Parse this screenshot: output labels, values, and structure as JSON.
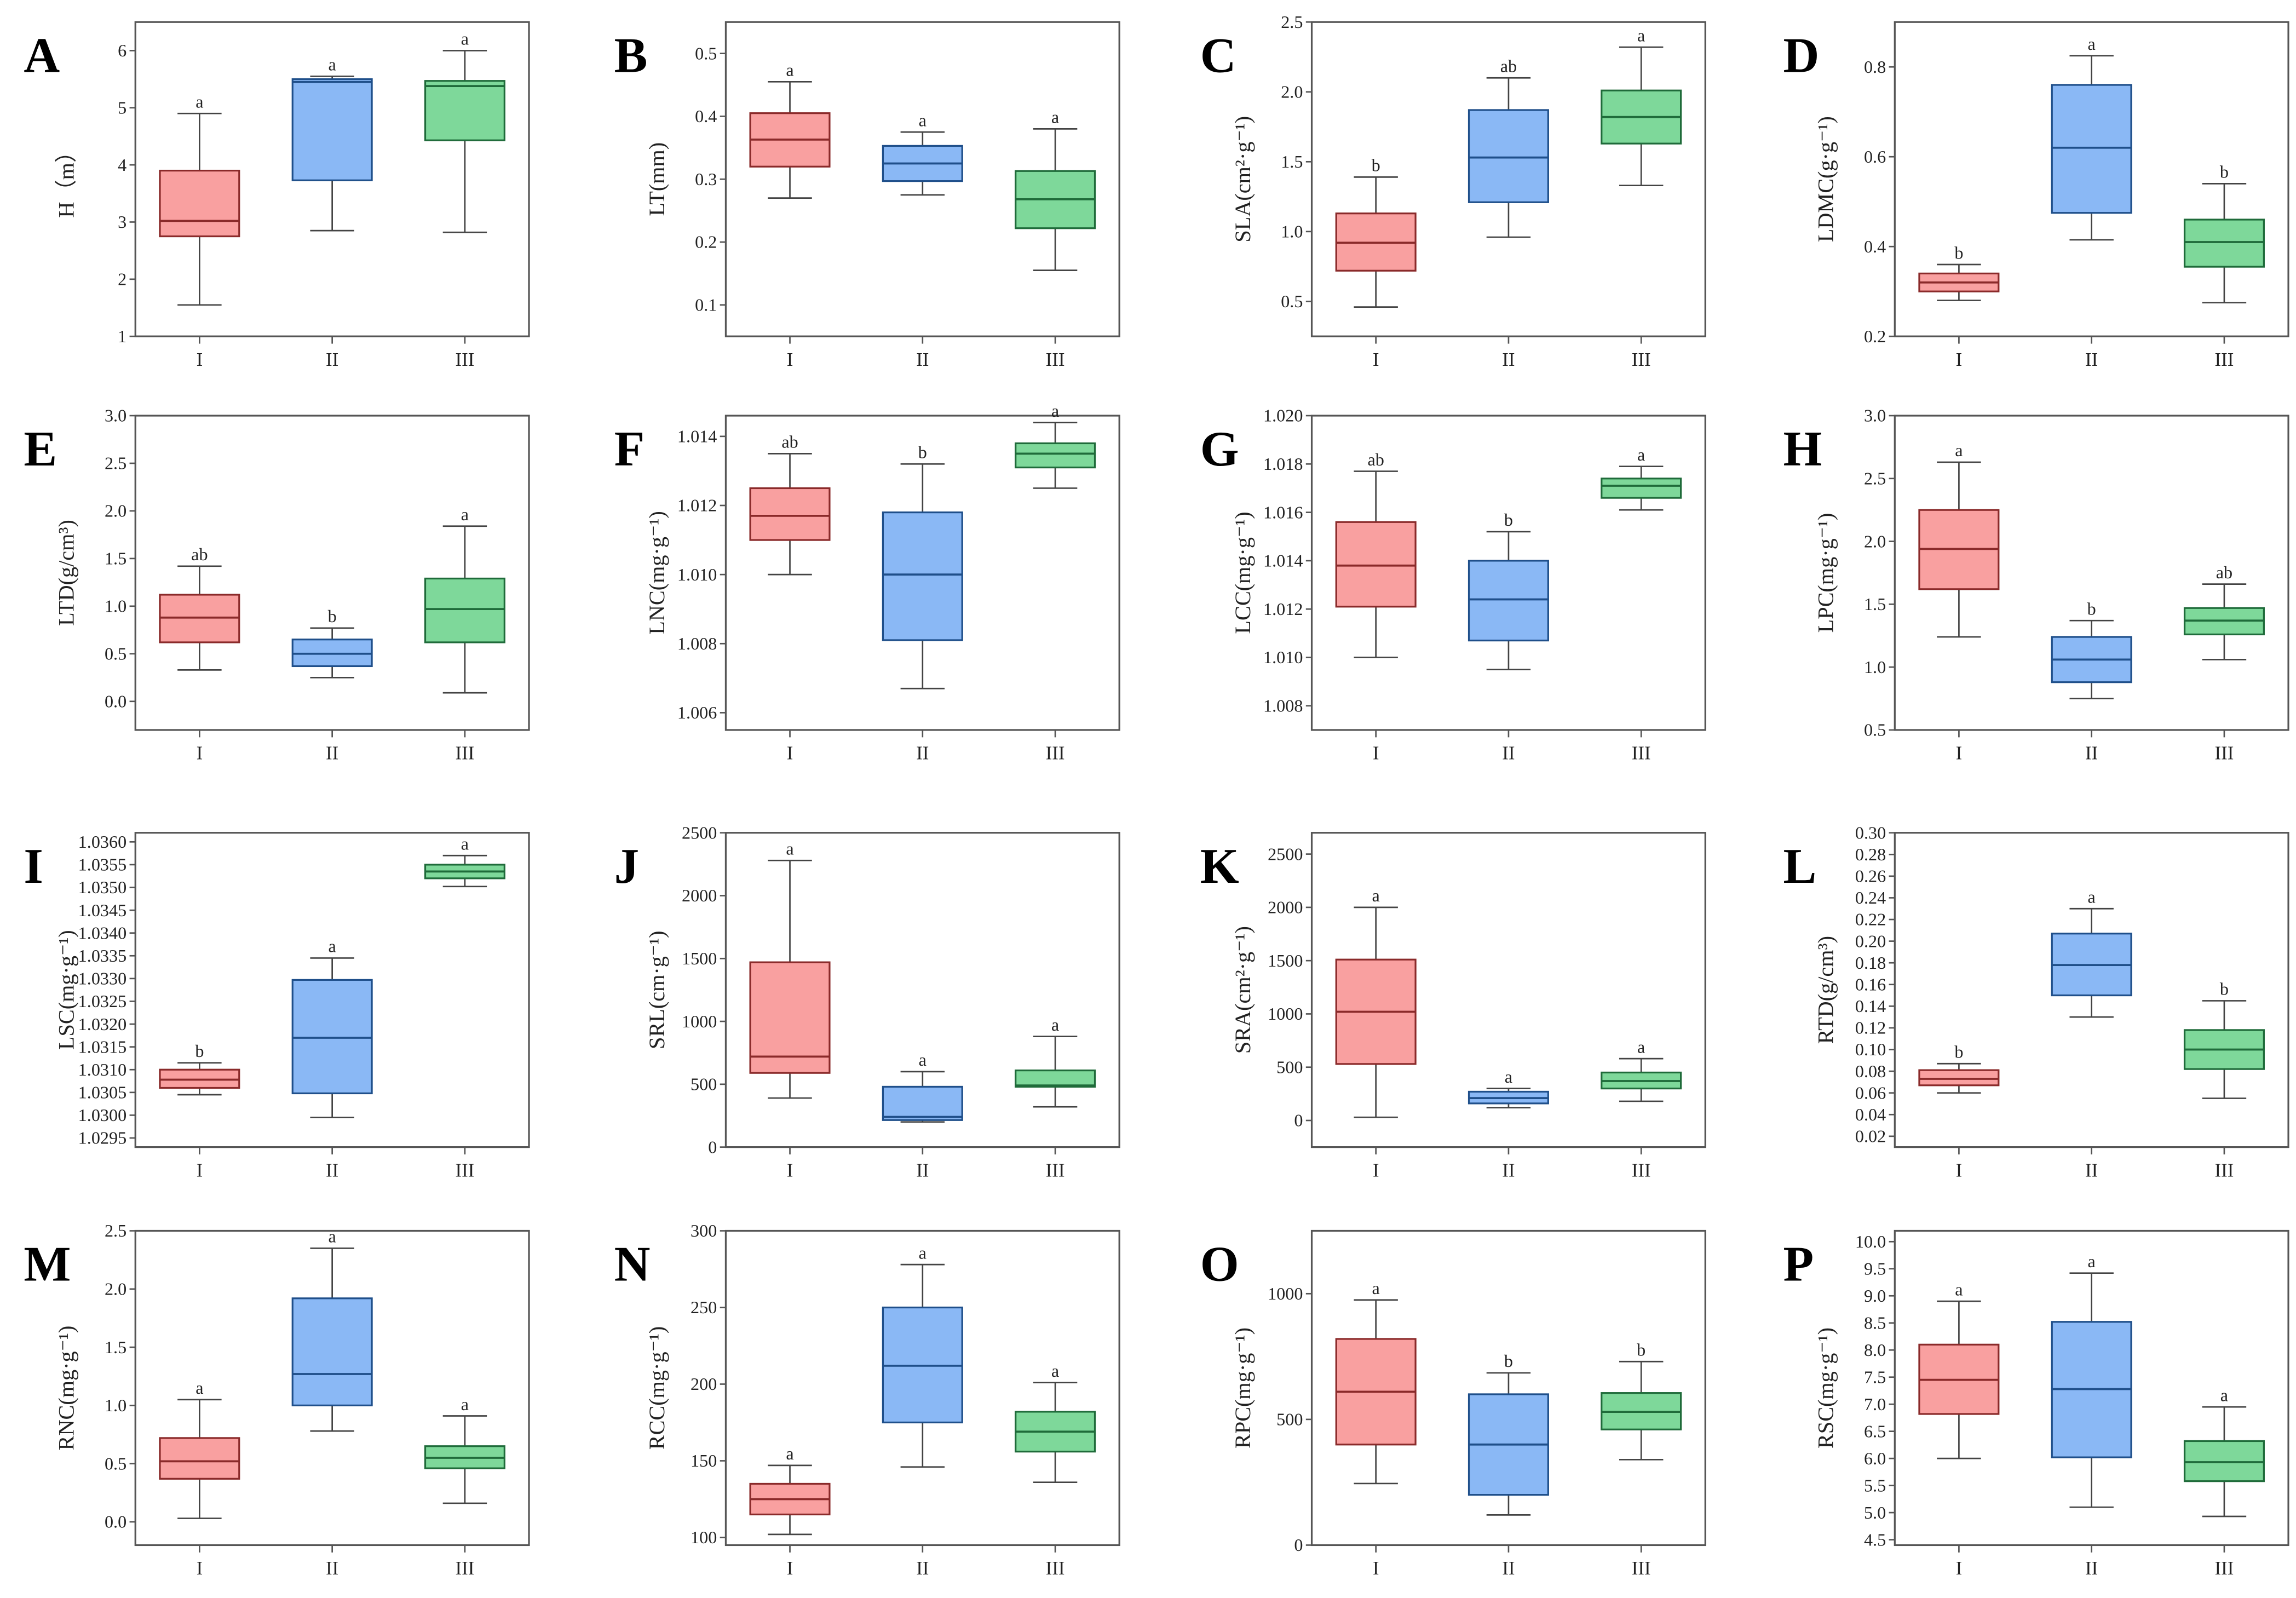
{
  "colors": {
    "I": "#f9a0a0",
    "II": "#8ab8f5",
    "III": "#7ed89a",
    "I_line": "#8a2a2a",
    "II_line": "#1f4f8a",
    "III_line": "#1f6b3a",
    "whisker": "#444444",
    "axis": "#555555"
  },
  "chart_data": [
    {
      "type": "box",
      "panel": "A",
      "ylabel": "H（m）",
      "yticks": [
        "1",
        "2",
        "3",
        "4",
        "5",
        "6"
      ],
      "ylim": [
        1,
        6.5
      ],
      "categories": [
        "I",
        "II",
        "III"
      ],
      "boxes": [
        {
          "min": 1.55,
          "q1": 2.75,
          "median": 3.02,
          "q3": 3.9,
          "max": 4.9,
          "sig": "a"
        },
        {
          "min": 2.85,
          "q1": 3.73,
          "median": 5.45,
          "q3": 5.5,
          "max": 5.55,
          "sig": "a"
        },
        {
          "min": 2.82,
          "q1": 4.43,
          "median": 5.38,
          "q3": 5.47,
          "max": 6.0,
          "sig": "a"
        }
      ]
    },
    {
      "type": "box",
      "panel": "B",
      "ylabel": "LT(mm)",
      "yticks": [
        "0.1",
        "0.2",
        "0.3",
        "0.4",
        "0.5"
      ],
      "ylim": [
        0.05,
        0.55
      ],
      "categories": [
        "I",
        "II",
        "III"
      ],
      "boxes": [
        {
          "min": 0.27,
          "q1": 0.32,
          "median": 0.363,
          "q3": 0.405,
          "max": 0.455,
          "sig": "a"
        },
        {
          "min": 0.275,
          "q1": 0.297,
          "median": 0.325,
          "q3": 0.353,
          "max": 0.375,
          "sig": "a"
        },
        {
          "min": 0.155,
          "q1": 0.222,
          "median": 0.268,
          "q3": 0.313,
          "max": 0.38,
          "sig": "a"
        }
      ]
    },
    {
      "type": "box",
      "panel": "C",
      "ylabel": "SLA(cm²·g⁻¹)",
      "yticks": [
        "0.5",
        "1.0",
        "1.5",
        "2.0",
        "2.5"
      ],
      "ylim": [
        0.25,
        2.5
      ],
      "categories": [
        "I",
        "II",
        "III"
      ],
      "boxes": [
        {
          "min": 0.46,
          "q1": 0.72,
          "median": 0.92,
          "q3": 1.13,
          "max": 1.39,
          "sig": "b"
        },
        {
          "min": 0.96,
          "q1": 1.21,
          "median": 1.53,
          "q3": 1.87,
          "max": 2.1,
          "sig": "ab"
        },
        {
          "min": 1.33,
          "q1": 1.63,
          "median": 1.82,
          "q3": 2.01,
          "max": 2.32,
          "sig": "a"
        }
      ]
    },
    {
      "type": "box",
      "panel": "D",
      "ylabel": "LDMC(g·g⁻¹)",
      "yticks": [
        "0.2",
        "0.4",
        "0.6",
        "0.8"
      ],
      "ylim": [
        0.2,
        0.9
      ],
      "categories": [
        "I",
        "II",
        "III"
      ],
      "boxes": [
        {
          "min": 0.28,
          "q1": 0.3,
          "median": 0.32,
          "q3": 0.34,
          "max": 0.36,
          "sig": "b"
        },
        {
          "min": 0.415,
          "q1": 0.475,
          "median": 0.62,
          "q3": 0.76,
          "max": 0.825,
          "sig": "a"
        },
        {
          "min": 0.275,
          "q1": 0.355,
          "median": 0.41,
          "q3": 0.46,
          "max": 0.54,
          "sig": "b"
        }
      ]
    },
    {
      "type": "box",
      "panel": "E",
      "ylabel": "LTD(g/cm³)",
      "yticks": [
        "0.0",
        "0.5",
        "1.0",
        "1.5",
        "2.0",
        "2.5",
        "3.0"
      ],
      "ylim": [
        -0.3,
        3.0
      ],
      "categories": [
        "I",
        "II",
        "III"
      ],
      "boxes": [
        {
          "min": 0.33,
          "q1": 0.62,
          "median": 0.88,
          "q3": 1.12,
          "max": 1.42,
          "sig": "ab"
        },
        {
          "min": 0.25,
          "q1": 0.37,
          "median": 0.5,
          "q3": 0.65,
          "max": 0.77,
          "sig": "b"
        },
        {
          "min": 0.09,
          "q1": 0.62,
          "median": 0.97,
          "q3": 1.29,
          "max": 1.84,
          "sig": "a"
        }
      ]
    },
    {
      "type": "box",
      "panel": "F",
      "ylabel": "LNC(mg·g⁻¹)",
      "yticks": [
        "1.006",
        "1.008",
        "1.010",
        "1.012",
        "1.014"
      ],
      "ylim": [
        1.0055,
        1.0146
      ],
      "categories": [
        "I",
        "II",
        "III"
      ],
      "boxes": [
        {
          "min": 1.01,
          "q1": 1.011,
          "median": 1.0117,
          "q3": 1.0125,
          "max": 1.0135,
          "sig": "ab"
        },
        {
          "min": 1.0067,
          "q1": 1.0081,
          "median": 1.01,
          "q3": 1.0118,
          "max": 1.0132,
          "sig": "b"
        },
        {
          "min": 1.0125,
          "q1": 1.0131,
          "median": 1.0135,
          "q3": 1.0138,
          "max": 1.0144,
          "sig": "a"
        }
      ]
    },
    {
      "type": "box",
      "panel": "G",
      "ylabel": "LCC(mg·g⁻¹)",
      "yticks": [
        "1.008",
        "1.010",
        "1.012",
        "1.014",
        "1.016",
        "1.018",
        "1.020"
      ],
      "ylim": [
        1.007,
        1.02
      ],
      "categories": [
        "I",
        "II",
        "III"
      ],
      "boxes": [
        {
          "min": 1.01,
          "q1": 1.0121,
          "median": 1.0138,
          "q3": 1.0156,
          "max": 1.0177,
          "sig": "ab"
        },
        {
          "min": 1.0095,
          "q1": 1.0107,
          "median": 1.0124,
          "q3": 1.014,
          "max": 1.0152,
          "sig": "b"
        },
        {
          "min": 1.0161,
          "q1": 1.0166,
          "median": 1.0171,
          "q3": 1.0174,
          "max": 1.0179,
          "sig": "a"
        }
      ]
    },
    {
      "type": "box",
      "panel": "H",
      "ylabel": "LPC(mg·g⁻¹)",
      "yticks": [
        "0.5",
        "1.0",
        "1.5",
        "2.0",
        "2.5",
        "3.0"
      ],
      "ylim": [
        0.5,
        3.0
      ],
      "categories": [
        "I",
        "II",
        "III"
      ],
      "boxes": [
        {
          "min": 1.24,
          "q1": 1.62,
          "median": 1.94,
          "q3": 2.25,
          "max": 2.63,
          "sig": "a"
        },
        {
          "min": 0.75,
          "q1": 0.88,
          "median": 1.06,
          "q3": 1.24,
          "max": 1.37,
          "sig": "b"
        },
        {
          "min": 1.06,
          "q1": 1.26,
          "median": 1.37,
          "q3": 1.47,
          "max": 1.66,
          "sig": "ab"
        }
      ]
    },
    {
      "type": "box",
      "panel": "I",
      "ylabel": "LSC(mg·g⁻¹)",
      "yticks": [
        "1.0295",
        "1.0300",
        "1.0305",
        "1.0310",
        "1.0315",
        "1.0320",
        "1.0325",
        "1.0330",
        "1.0335",
        "1.0340",
        "1.0345",
        "1.0350",
        "1.0355",
        "1.0360"
      ],
      "ylim": [
        1.0293,
        1.0362
      ],
      "categories": [
        "I",
        "II",
        "III"
      ],
      "boxes": [
        {
          "min": 1.03045,
          "q1": 1.0306,
          "median": 1.03078,
          "q3": 1.031,
          "max": 1.03115,
          "sig": "b"
        },
        {
          "min": 1.02995,
          "q1": 1.03048,
          "median": 1.0317,
          "q3": 1.03297,
          "max": 1.03345,
          "sig": "a"
        },
        {
          "min": 1.03502,
          "q1": 1.0352,
          "median": 1.03535,
          "q3": 1.0355,
          "max": 1.0357,
          "sig": "a"
        }
      ]
    },
    {
      "type": "box",
      "panel": "J",
      "ylabel": "SRL(cm·g⁻¹)",
      "yticks": [
        "0",
        "500",
        "1000",
        "1500",
        "2000",
        "2500"
      ],
      "ylim": [
        0,
        2500
      ],
      "categories": [
        "I",
        "II",
        "III"
      ],
      "boxes": [
        {
          "min": 390,
          "q1": 590,
          "median": 720,
          "q3": 1470,
          "max": 2280,
          "sig": "a"
        },
        {
          "min": 200,
          "q1": 215,
          "median": 240,
          "q3": 480,
          "max": 600,
          "sig": "a"
        },
        {
          "min": 320,
          "q1": 480,
          "median": 490,
          "q3": 610,
          "max": 880,
          "sig": "a"
        }
      ]
    },
    {
      "type": "box",
      "panel": "K",
      "ylabel": "SRA(cm²·g⁻¹)",
      "yticks": [
        "0",
        "500",
        "1000",
        "1500",
        "2000",
        "2500"
      ],
      "ylim": [
        -250,
        2700
      ],
      "categories": [
        "I",
        "II",
        "III"
      ],
      "boxes": [
        {
          "min": 30,
          "q1": 530,
          "median": 1020,
          "q3": 1510,
          "max": 2000,
          "sig": "a"
        },
        {
          "min": 120,
          "q1": 160,
          "median": 210,
          "q3": 270,
          "max": 300,
          "sig": "a"
        },
        {
          "min": 180,
          "q1": 300,
          "median": 370,
          "q3": 450,
          "max": 580,
          "sig": "a"
        }
      ]
    },
    {
      "type": "box",
      "panel": "L",
      "ylabel": "RTD(g/cm³)",
      "yticks": [
        "0.02",
        "0.04",
        "0.06",
        "0.08",
        "0.10",
        "0.12",
        "0.14",
        "0.16",
        "0.18",
        "0.20",
        "0.22",
        "0.24",
        "0.26",
        "0.28",
        "0.30"
      ],
      "ylim": [
        0.01,
        0.3
      ],
      "categories": [
        "I",
        "II",
        "III"
      ],
      "boxes": [
        {
          "min": 0.06,
          "q1": 0.067,
          "median": 0.073,
          "q3": 0.081,
          "max": 0.087,
          "sig": "b"
        },
        {
          "min": 0.13,
          "q1": 0.15,
          "median": 0.178,
          "q3": 0.207,
          "max": 0.23,
          "sig": "a"
        },
        {
          "min": 0.055,
          "q1": 0.082,
          "median": 0.1,
          "q3": 0.118,
          "max": 0.145,
          "sig": "b"
        }
      ]
    },
    {
      "type": "box",
      "panel": "M",
      "ylabel": "RNC(mg·g⁻¹)",
      "yticks": [
        "0.0",
        "0.5",
        "1.0",
        "1.5",
        "2.0",
        "2.5"
      ],
      "ylim": [
        -0.2,
        2.5
      ],
      "categories": [
        "I",
        "II",
        "III"
      ],
      "boxes": [
        {
          "min": 0.03,
          "q1": 0.37,
          "median": 0.52,
          "q3": 0.72,
          "max": 1.05,
          "sig": "a"
        },
        {
          "min": 0.78,
          "q1": 1.0,
          "median": 1.27,
          "q3": 1.92,
          "max": 2.35,
          "sig": "a"
        },
        {
          "min": 0.16,
          "q1": 0.46,
          "median": 0.55,
          "q3": 0.65,
          "max": 0.91,
          "sig": "a"
        }
      ]
    },
    {
      "type": "box",
      "panel": "N",
      "ylabel": "RCC(mg·g⁻¹)",
      "yticks": [
        "100",
        "150",
        "200",
        "250",
        "300"
      ],
      "ylim": [
        95,
        300
      ],
      "categories": [
        "I",
        "II",
        "III"
      ],
      "boxes": [
        {
          "min": 102,
          "q1": 115,
          "median": 125,
          "q3": 135,
          "max": 147,
          "sig": "a"
        },
        {
          "min": 146,
          "q1": 175,
          "median": 212,
          "q3": 250,
          "max": 278,
          "sig": "a"
        },
        {
          "min": 136,
          "q1": 156,
          "median": 169,
          "q3": 182,
          "max": 201,
          "sig": "a"
        }
      ]
    },
    {
      "type": "box",
      "panel": "O",
      "ylabel": "RPC(mg·g⁻¹)",
      "yticks": [
        "0",
        "500",
        "1000"
      ],
      "ylim": [
        0,
        1250
      ],
      "categories": [
        "I",
        "II",
        "III"
      ],
      "boxes": [
        {
          "min": 245,
          "q1": 400,
          "median": 610,
          "q3": 820,
          "max": 975,
          "sig": "a"
        },
        {
          "min": 120,
          "q1": 200,
          "median": 400,
          "q3": 600,
          "max": 685,
          "sig": "b"
        },
        {
          "min": 340,
          "q1": 460,
          "median": 530,
          "q3": 605,
          "max": 730,
          "sig": "b"
        }
      ]
    },
    {
      "type": "box",
      "panel": "P",
      "ylabel": "RSC(mg·g⁻¹)",
      "yticks": [
        "4.5",
        "5.0",
        "5.5",
        "6.0",
        "6.5",
        "7.0",
        "7.5",
        "8.0",
        "8.5",
        "9.0",
        "9.5",
        "10.0"
      ],
      "ylim": [
        4.4,
        10.2
      ],
      "categories": [
        "I",
        "II",
        "III"
      ],
      "boxes": [
        {
          "min": 6.0,
          "q1": 6.82,
          "median": 7.45,
          "q3": 8.1,
          "max": 8.9,
          "sig": "a"
        },
        {
          "min": 5.1,
          "q1": 6.02,
          "median": 7.28,
          "q3": 8.52,
          "max": 9.42,
          "sig": "a"
        },
        {
          "min": 4.93,
          "q1": 5.58,
          "median": 5.93,
          "q3": 6.32,
          "max": 6.95,
          "sig": "a"
        }
      ]
    }
  ]
}
